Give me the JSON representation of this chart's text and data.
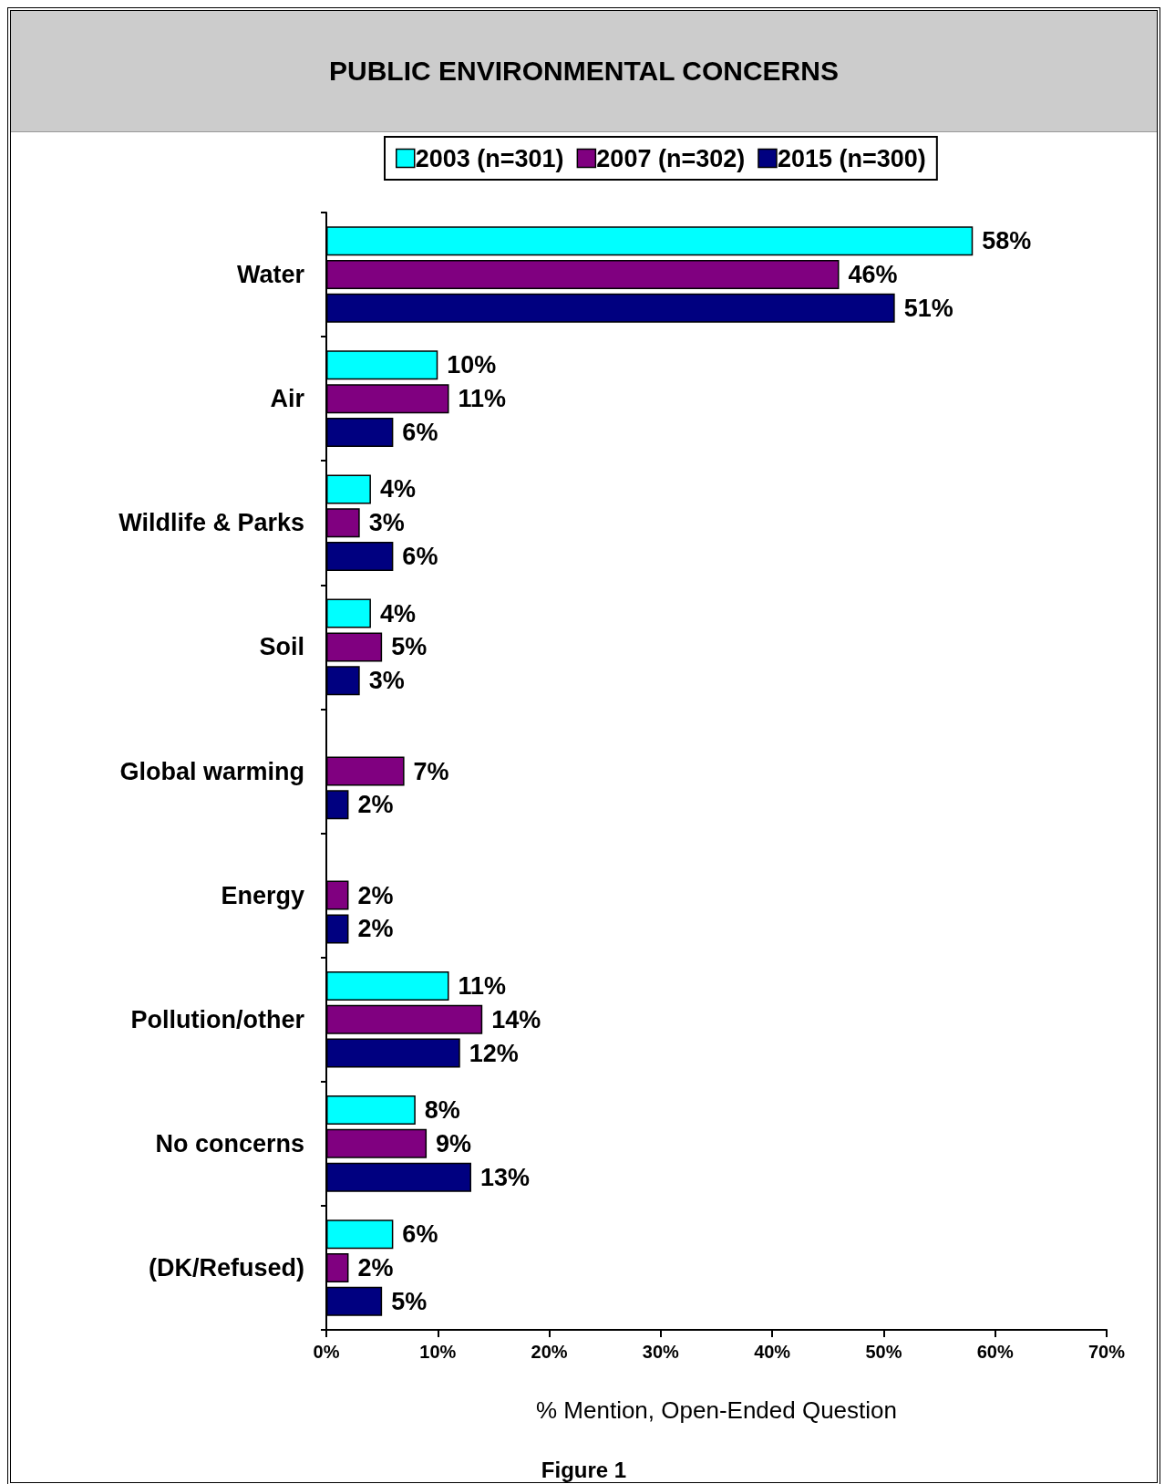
{
  "chart_data": {
    "type": "bar",
    "orientation": "horizontal",
    "title": "PUBLIC ENVIRONMENTAL CONCERNS",
    "xlabel": "% Mention, Open-Ended Question",
    "annotations": [
      "Figure 1"
    ],
    "categories": [
      "Water",
      "Air",
      "Wildlife & Parks",
      "Soil",
      "Global warming",
      "Energy",
      "Pollution/other",
      "No concerns",
      "(DK/Refused)"
    ],
    "series": [
      {
        "name": "2003 (n=301)",
        "color": "#00ffff",
        "values": [
          58,
          10,
          4,
          4,
          null,
          null,
          11,
          8,
          6
        ],
        "value_labels": [
          "58%",
          "10%",
          "4%",
          "4%",
          null,
          null,
          "11%",
          "8%",
          "6%"
        ]
      },
      {
        "name": "2007 (n=302)",
        "color": "#800080",
        "values": [
          46,
          11,
          3,
          5,
          7,
          2,
          14,
          9,
          2
        ],
        "value_labels": [
          "46%",
          "11%",
          "3%",
          "5%",
          "7%",
          "2%",
          "14%",
          "9%",
          "2%"
        ]
      },
      {
        "name": "2015 (n=300)",
        "color": "#000080",
        "values": [
          51,
          6,
          6,
          3,
          2,
          2,
          12,
          13,
          5
        ],
        "value_labels": [
          "51%",
          "6%",
          "6%",
          "3%",
          "2%",
          "2%",
          "12%",
          "13%",
          "5%"
        ]
      }
    ],
    "xlim": [
      0,
      70
    ],
    "xticks": [
      {
        "value": 0,
        "label": "0%"
      },
      {
        "value": 10,
        "label": "10%"
      },
      {
        "value": 20,
        "label": "20%"
      },
      {
        "value": 30,
        "label": "30%"
      },
      {
        "value": 40,
        "label": "40%"
      },
      {
        "value": 50,
        "label": "50%"
      },
      {
        "value": 60,
        "label": "60%"
      },
      {
        "value": 70,
        "label": "70%"
      }
    ],
    "grid": false,
    "legend": "top"
  }
}
